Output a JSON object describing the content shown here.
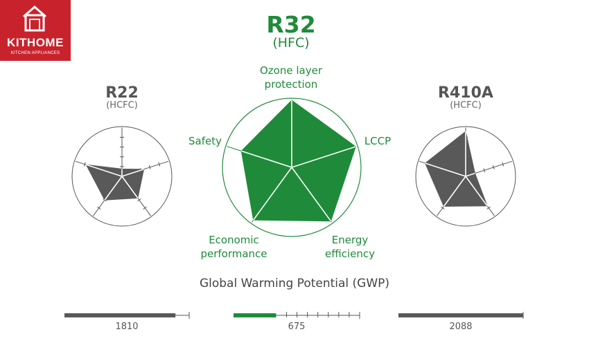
{
  "brand": {
    "name": "KITHOME",
    "tagline": "KITCHEN APPLIANCES",
    "color": "#c8232c"
  },
  "colors": {
    "green": "#1f8b3a",
    "gray": "#595959",
    "outline": "#555555"
  },
  "chart_data": [
    {
      "type": "radar",
      "title": "R22",
      "subtitle": "(HCFC)",
      "axes": [
        "Ozone layer protection",
        "LCCP",
        "Energy efficiency",
        "Economic performance",
        "Safety"
      ],
      "values": [
        0.15,
        0.47,
        0.55,
        0.6,
        0.77
      ],
      "max": 1,
      "gwp": 1810
    },
    {
      "type": "radar",
      "title": "R32",
      "subtitle": "(HFC)",
      "axes": [
        "Ozone layer protection",
        "LCCP",
        "Energy efficiency",
        "Economic performance",
        "Safety"
      ],
      "axis_labels": [
        "Ozone layer\nprotection",
        "LCCP",
        "Energy\nefficiency",
        "Economic\nperformance",
        "Safety"
      ],
      "values": [
        0.99,
        0.99,
        0.98,
        0.96,
        0.78
      ],
      "max": 1,
      "gwp": 675
    },
    {
      "type": "radar",
      "title": "R410A",
      "subtitle": "(HCFC)",
      "axes": [
        "Ozone layer protection",
        "LCCP",
        "Energy efficiency",
        "Economic performance",
        "Safety"
      ],
      "values": [
        0.92,
        0.2,
        0.75,
        0.76,
        0.87
      ],
      "max": 1,
      "gwp": 2088
    }
  ],
  "gwp_title": "Global Warming Potential (GWP)",
  "gwp_max": 2300
}
